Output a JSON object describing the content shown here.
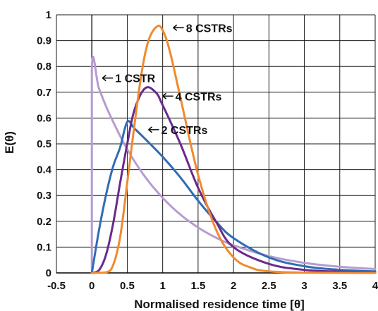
{
  "chart_data": {
    "type": "line",
    "title": "",
    "xlabel": "Normalised residence time [θ]",
    "ylabel": "E(θ)",
    "xlim": [
      -0.5,
      4
    ],
    "ylim": [
      0,
      1
    ],
    "x_ticks": [
      "-0.5",
      "0",
      "0.5",
      "1",
      "1.5",
      "2",
      "2.5",
      "3",
      "3.5",
      "4"
    ],
    "y_ticks": [
      "0",
      "0.1",
      "0.2",
      "0.3",
      "0.4",
      "0.5",
      "0.6",
      "0.7",
      "0.8",
      "0.9",
      "1"
    ],
    "grid": true,
    "legend": "none",
    "series": [
      {
        "name": "1 CSTR",
        "color": "#b79bd0",
        "points": [
          [
            0,
            0
          ],
          [
            0,
            0.79
          ],
          [
            0.1,
            0.715
          ],
          [
            0.25,
            0.615
          ],
          [
            0.5,
            0.479
          ],
          [
            0.75,
            0.373
          ],
          [
            1,
            0.291
          ],
          [
            1.25,
            0.226
          ],
          [
            1.5,
            0.176
          ],
          [
            1.75,
            0.137
          ],
          [
            2,
            0.107
          ],
          [
            2.5,
            0.065
          ],
          [
            3,
            0.039
          ],
          [
            3.5,
            0.024
          ],
          [
            4,
            0.015
          ]
        ]
      },
      {
        "name": "2 CSTRs",
        "color": "#2f6db5",
        "points": [
          [
            0,
            0
          ],
          [
            0.1,
            0.164
          ],
          [
            0.2,
            0.302
          ],
          [
            0.3,
            0.412
          ],
          [
            0.4,
            0.487
          ],
          [
            0.5,
            0.585
          ],
          [
            0.6,
            0.56
          ],
          [
            0.75,
            0.52
          ],
          [
            1,
            0.45
          ],
          [
            1.25,
            0.37
          ],
          [
            1.5,
            0.28
          ],
          [
            1.75,
            0.2
          ],
          [
            2,
            0.135
          ],
          [
            2.5,
            0.06
          ],
          [
            3,
            0.026
          ],
          [
            3.5,
            0.012
          ],
          [
            4,
            0.006
          ]
        ]
      },
      {
        "name": "4 CSTRs",
        "color": "#6a2a8c",
        "points": [
          [
            0,
            0
          ],
          [
            0.1,
            0.01
          ],
          [
            0.2,
            0.07
          ],
          [
            0.3,
            0.19
          ],
          [
            0.4,
            0.35
          ],
          [
            0.5,
            0.5
          ],
          [
            0.6,
            0.63
          ],
          [
            0.75,
            0.715
          ],
          [
            0.9,
            0.7
          ],
          [
            1,
            0.65
          ],
          [
            1.25,
            0.5
          ],
          [
            1.5,
            0.33
          ],
          [
            1.75,
            0.2
          ],
          [
            2,
            0.1
          ],
          [
            2.5,
            0.035
          ],
          [
            3,
            0.012
          ],
          [
            3.5,
            0.005
          ],
          [
            4,
            0.002
          ]
        ]
      },
      {
        "name": "8 CSTRs",
        "color": "#f08a2e",
        "points": [
          [
            0,
            0
          ],
          [
            0.2,
            0.002
          ],
          [
            0.3,
            0.03
          ],
          [
            0.4,
            0.14
          ],
          [
            0.5,
            0.35
          ],
          [
            0.6,
            0.57
          ],
          [
            0.7,
            0.77
          ],
          [
            0.8,
            0.9
          ],
          [
            0.92,
            0.955
          ],
          [
            1,
            0.94
          ],
          [
            1.1,
            0.86
          ],
          [
            1.25,
            0.68
          ],
          [
            1.5,
            0.38
          ],
          [
            1.75,
            0.17
          ],
          [
            2,
            0.06
          ],
          [
            2.25,
            0.02
          ],
          [
            2.5,
            0.006
          ],
          [
            3,
            0.001
          ],
          [
            4,
            0
          ]
        ]
      }
    ],
    "annotations": [
      {
        "label": "8 CSTRs",
        "x": 1.15,
        "y": 0.95
      },
      {
        "label": "1 CSTR",
        "x": 0.15,
        "y": 0.755
      },
      {
        "label": "4 CSTRs",
        "x": 1.0,
        "y": 0.685
      },
      {
        "label": "2 CSTRs",
        "x": 0.8,
        "y": 0.555
      }
    ]
  }
}
